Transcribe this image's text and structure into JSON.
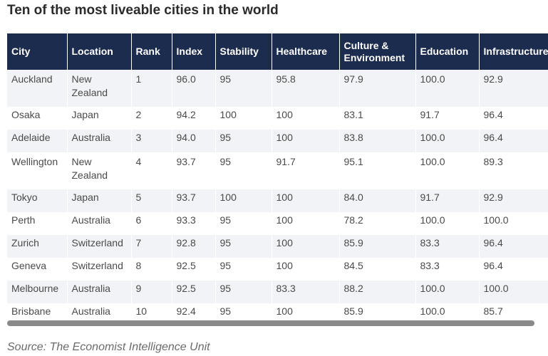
{
  "chart_data": {
    "type": "table",
    "title": "Ten of the most liveable cities in the world",
    "columns": [
      "City",
      "Location",
      "Rank",
      "Index",
      "Stability",
      "Healthcare",
      "Culture & Environment",
      "Education",
      "Infrastructure"
    ],
    "rows": [
      [
        "Auckland",
        "New Zealand",
        "1",
        "96.0",
        "95",
        "95.8",
        "97.9",
        "100.0",
        "92.9"
      ],
      [
        "Osaka",
        "Japan",
        "2",
        "94.2",
        "100",
        "100",
        "83.1",
        "91.7",
        "96.4"
      ],
      [
        "Adelaide",
        "Australia",
        "3",
        "94.0",
        "95",
        "100",
        "83.8",
        "100.0",
        "96.4"
      ],
      [
        "Wellington",
        "New Zealand",
        "4",
        "93.7",
        "95",
        "91.7",
        "95.1",
        "100.0",
        "89.3"
      ],
      [
        "Tokyo",
        "Japan",
        "5",
        "93.7",
        "100",
        "100",
        "84.0",
        "91.7",
        "92.9"
      ],
      [
        "Perth",
        "Australia",
        "6",
        "93.3",
        "95",
        "100",
        "78.2",
        "100.0",
        "100.0"
      ],
      [
        "Zurich",
        "Switzerland",
        "7",
        "92.8",
        "95",
        "100",
        "85.9",
        "83.3",
        "96.4"
      ],
      [
        "Geneva",
        "Switzerland",
        "8",
        "92.5",
        "95",
        "100",
        "84.5",
        "83.3",
        "96.4"
      ],
      [
        "Melbourne",
        "Australia",
        "9",
        "92.5",
        "95",
        "83.3",
        "88.2",
        "100.0",
        "100.0"
      ],
      [
        "Brisbane",
        "Australia",
        "10",
        "92.4",
        "95",
        "100",
        "85.9",
        "100.0",
        "85.7"
      ]
    ],
    "source": "Source: The Economist Intelligence Unit"
  },
  "colors": {
    "header_bg": "#1c2c4e",
    "header_text": "#ffffff",
    "stripe": "#f2f3f6"
  }
}
